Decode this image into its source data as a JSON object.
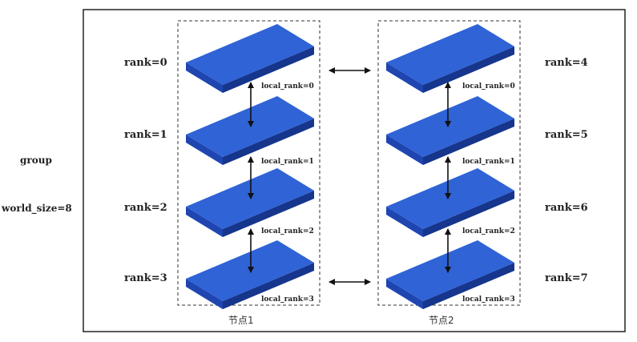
{
  "group": {
    "label": "group",
    "world_size_label": "world_size=8"
  },
  "colors": {
    "card_top": "#2f63d6",
    "card_front": "#1f46b0",
    "card_side": "#16358c",
    "frame": "#222222"
  },
  "nodes": [
    {
      "label": "节点1",
      "cards": [
        {
          "rank": "rank=0",
          "local_rank": "local_rank=0"
        },
        {
          "rank": "rank=1",
          "local_rank": "local_rank=1"
        },
        {
          "rank": "rank=2",
          "local_rank": "local_rank=2"
        },
        {
          "rank": "rank=3",
          "local_rank": "local_rank=3"
        }
      ]
    },
    {
      "label": "节点2",
      "cards": [
        {
          "rank": "rank=4",
          "local_rank": "local_rank=0"
        },
        {
          "rank": "rank=5",
          "local_rank": "local_rank=1"
        },
        {
          "rank": "rank=6",
          "local_rank": "local_rank=2"
        },
        {
          "rank": "rank=7",
          "local_rank": "local_rank=3"
        }
      ]
    }
  ]
}
